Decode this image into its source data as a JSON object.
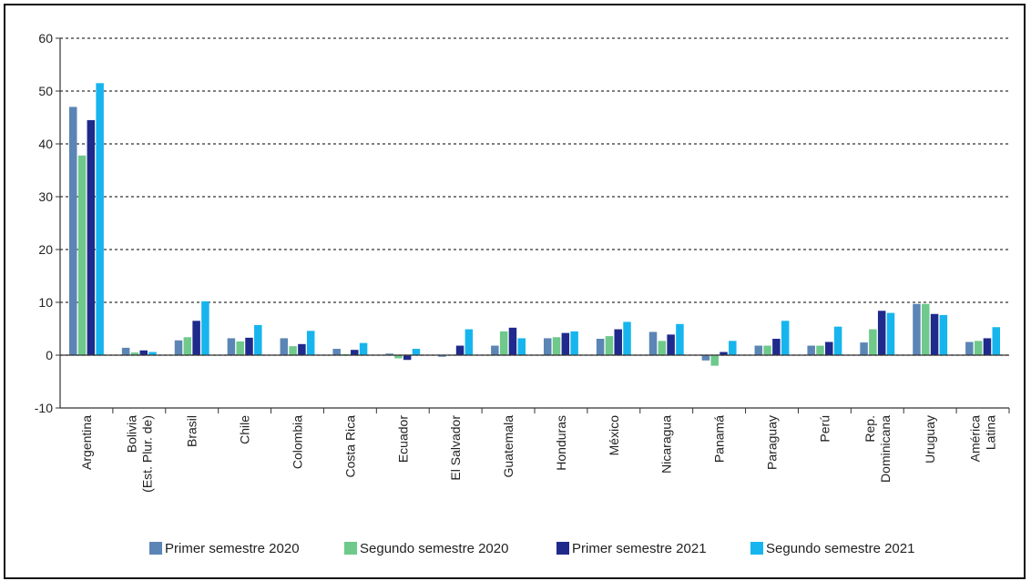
{
  "chart_data": {
    "type": "bar",
    "categories": [
      [
        "Argentina"
      ],
      [
        "Bolivia",
        "(Est. Plur. de)"
      ],
      [
        "Brasil"
      ],
      [
        "Chile"
      ],
      [
        "Colombia"
      ],
      [
        "Costa Rica"
      ],
      [
        "Ecuador"
      ],
      [
        "El Salvador"
      ],
      [
        "Guatemala"
      ],
      [
        "Honduras"
      ],
      [
        "México"
      ],
      [
        "Nicaragua"
      ],
      [
        "Panamá"
      ],
      [
        "Paraguay"
      ],
      [
        "Perú"
      ],
      [
        "Rep.",
        "Dominicana"
      ],
      [
        "Uruguay"
      ],
      [
        "América",
        "Latina"
      ]
    ],
    "series": [
      {
        "name": "Primer semestre 2020",
        "color": "#5b85b5",
        "values": [
          47.0,
          1.4,
          2.8,
          3.2,
          3.2,
          1.2,
          0.3,
          -0.3,
          1.8,
          3.2,
          3.1,
          4.4,
          -1.0,
          1.8,
          1.8,
          2.4,
          9.7,
          2.5
        ]
      },
      {
        "name": "Segundo semestre 2020",
        "color": "#6ec98a",
        "values": [
          37.8,
          0.5,
          3.4,
          2.6,
          1.7,
          0.2,
          -0.6,
          0.1,
          4.5,
          3.4,
          3.6,
          2.7,
          -2.0,
          1.8,
          1.8,
          4.9,
          9.7,
          2.7
        ]
      },
      {
        "name": "Primer semestre 2021",
        "color": "#1f2a8c",
        "values": [
          44.5,
          0.9,
          6.5,
          3.3,
          2.1,
          1.0,
          -0.9,
          1.8,
          5.2,
          4.2,
          4.9,
          3.9,
          0.6,
          3.1,
          2.5,
          8.4,
          7.8,
          3.2
        ]
      },
      {
        "name": "Segundo semestre 2021",
        "color": "#17b5ee",
        "values": [
          51.5,
          0.6,
          10.2,
          5.7,
          4.6,
          2.3,
          1.2,
          4.9,
          3.2,
          4.5,
          6.3,
          5.9,
          2.7,
          6.5,
          5.4,
          8.0,
          7.6,
          5.3
        ]
      }
    ],
    "ylim": [
      -10,
      60
    ],
    "yticks": [
      -10,
      0,
      10,
      20,
      30,
      40,
      50,
      60
    ],
    "grid": true,
    "legend_position": "bottom"
  }
}
